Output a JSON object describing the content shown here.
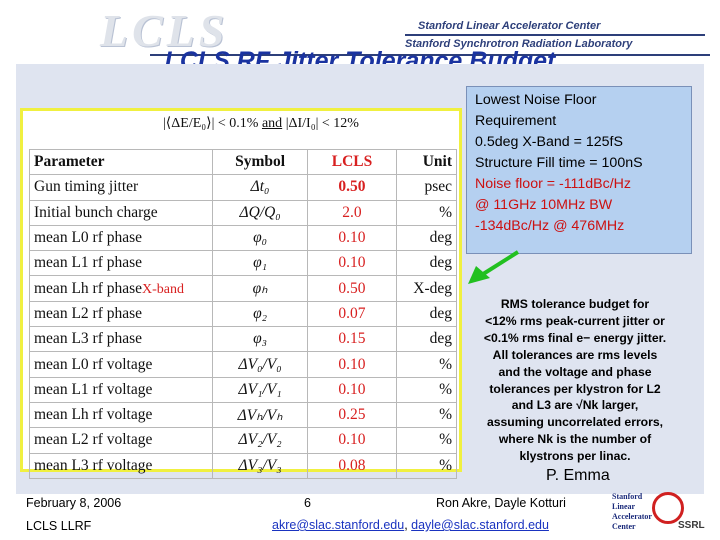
{
  "header": {
    "logo_text": "LCLS",
    "org_line1": "Stanford Linear Accelerator Center",
    "org_line2": "Stanford Synchrotron Radiation Laboratory",
    "title": "LCLS RF Jitter Tolerance Budget"
  },
  "table": {
    "condition_left": "|⟨ΔE/E₀⟩| < 0.1%",
    "condition_and": "and",
    "condition_right": "|ΔI/I₀| < 12%",
    "headers": [
      "Parameter",
      "Symbol",
      "LCLS",
      "Unit"
    ],
    "rows": [
      {
        "parameter": "Gun timing jitter",
        "symbol": "Δt₀",
        "lcls": "0.50",
        "unit": "psec",
        "bold": true
      },
      {
        "parameter": "Initial bunch charge",
        "symbol": "ΔQ/Q₀",
        "lcls": "2.0",
        "unit": "%"
      },
      {
        "parameter": "mean L0 rf phase",
        "symbol": "φ₀",
        "lcls": "0.10",
        "unit": "deg"
      },
      {
        "parameter": "mean L1 rf phase",
        "symbol": "φ₁",
        "lcls": "0.10",
        "unit": "deg"
      },
      {
        "parameter": "mean Lh rf phase",
        "tag": "X-band",
        "symbol": "φₕ",
        "lcls": "0.50",
        "unit": "X-deg"
      },
      {
        "parameter": "mean L2 rf phase",
        "symbol": "φ₂",
        "lcls": "0.07",
        "unit": "deg"
      },
      {
        "parameter": "mean L3 rf phase",
        "symbol": "φ₃",
        "lcls": "0.15",
        "unit": "deg"
      },
      {
        "parameter": "mean L0 rf voltage",
        "symbol": "ΔV₀/V₀",
        "lcls": "0.10",
        "unit": "%"
      },
      {
        "parameter": "mean L1 rf voltage",
        "symbol": "ΔV₁/V₁",
        "lcls": "0.10",
        "unit": "%"
      },
      {
        "parameter": "mean Lh rf voltage",
        "symbol": "ΔVₕ/Vₕ",
        "lcls": "0.25",
        "unit": "%"
      },
      {
        "parameter": "mean L2 rf voltage",
        "symbol": "ΔV₂/V₂",
        "lcls": "0.10",
        "unit": "%"
      },
      {
        "parameter": "mean L3 rf voltage",
        "symbol": "ΔV₃/V₃",
        "lcls": "0.08",
        "unit": "%"
      }
    ]
  },
  "callout": {
    "line1": "Lowest Noise Floor",
    "line2": "Requirement",
    "line3": "0.5deg X-Band = 125fS",
    "line4": "Structure Fill time = 100nS",
    "line5": "Noise floor = -111dBc/Hz",
    "line6": "@ 11GHz  10MHz BW",
    "line7": "-134dBc/Hz @ 476MHz"
  },
  "rms": {
    "l1": "RMS tolerance budget for",
    "l2": "<12%  rms peak-current jitter or",
    "l3": "<0.1%  rms final e− energy jitter.",
    "l4": "All tolerances are rms levels",
    "l5": "and the voltage and phase",
    "l6": "tolerances per klystron for L2",
    "l7": "and L3 are √Nk larger,",
    "l8": "assuming uncorrelated errors,",
    "l9": "where Nk is the number of",
    "l10": "klystrons per linac."
  },
  "author": "P. Emma",
  "footer": {
    "date": "February 8, 2006",
    "group": "LCLS LLRF",
    "page": "6",
    "names": "Ron Akre, Dayle Kotturi",
    "email1": "akre@slac.stanford.edu",
    "sep": ", ",
    "email2": "dayle@slac.stanford.edu",
    "logo_l1": "Stanford",
    "logo_l2": "Linear",
    "logo_l3": "Accelerator",
    "logo_l4": "Center",
    "logo_ssrl": "SSRL"
  },
  "colors": {
    "title": "#1a33a0",
    "accent_red": "#d82020",
    "callout_bg": "#b5d0f0",
    "panel_bg": "#dfe4f0",
    "arrow": "#22c020"
  }
}
